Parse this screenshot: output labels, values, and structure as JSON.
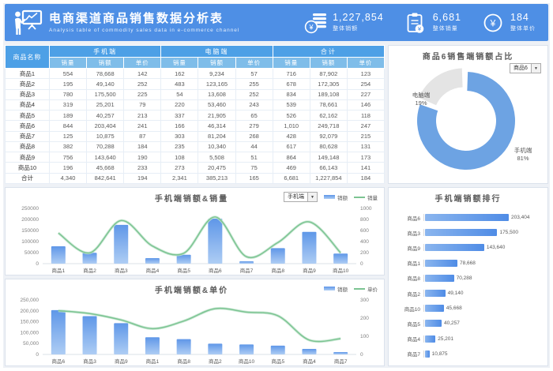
{
  "banner": {
    "title": "电商渠道商品销售数据分析表",
    "subtitle": "Analysis table of commodity sales data in e-commerce channel",
    "kpis": [
      {
        "value": "1,227,854",
        "label": "整体销额",
        "icon": "coin-stack-icon"
      },
      {
        "value": "6,681",
        "label": "整体销量",
        "icon": "clipboard-yen-icon"
      },
      {
        "value": "184",
        "label": "整体单价",
        "icon": "yen-circle-icon"
      }
    ]
  },
  "table": {
    "name_header": "商品名称",
    "group_headers": [
      "手机端",
      "电脑端",
      "合计"
    ],
    "sub_headers": [
      "销量",
      "销额",
      "单价"
    ],
    "rows": [
      {
        "name": "商品1",
        "values": [
          "554",
          "78,668",
          "142",
          "162",
          "9,234",
          "57",
          "716",
          "87,902",
          "123"
        ]
      },
      {
        "name": "商品2",
        "values": [
          "195",
          "49,140",
          "252",
          "483",
          "123,165",
          "255",
          "678",
          "172,305",
          "254"
        ]
      },
      {
        "name": "商品3",
        "values": [
          "780",
          "175,500",
          "225",
          "54",
          "13,608",
          "252",
          "834",
          "189,108",
          "227"
        ]
      },
      {
        "name": "商品4",
        "values": [
          "319",
          "25,201",
          "79",
          "220",
          "53,460",
          "243",
          "539",
          "78,661",
          "146"
        ]
      },
      {
        "name": "商品5",
        "values": [
          "189",
          "40,257",
          "213",
          "337",
          "21,905",
          "65",
          "526",
          "62,162",
          "118"
        ]
      },
      {
        "name": "商品6",
        "values": [
          "844",
          "203,404",
          "241",
          "166",
          "46,314",
          "279",
          "1,010",
          "249,718",
          "247"
        ]
      },
      {
        "name": "商品7",
        "values": [
          "125",
          "10,875",
          "87",
          "303",
          "81,204",
          "268",
          "428",
          "92,079",
          "215"
        ]
      },
      {
        "name": "商品8",
        "values": [
          "382",
          "70,288",
          "184",
          "235",
          "10,340",
          "44",
          "617",
          "80,628",
          "131"
        ]
      },
      {
        "name": "商品9",
        "values": [
          "756",
          "143,640",
          "190",
          "108",
          "5,508",
          "51",
          "864",
          "149,148",
          "173"
        ]
      },
      {
        "name": "商品10",
        "values": [
          "196",
          "45,668",
          "233",
          "273",
          "20,475",
          "75",
          "469",
          "66,143",
          "141"
        ]
      },
      {
        "name": "合计",
        "values": [
          "4,340",
          "842,641",
          "194",
          "2,341",
          "385,213",
          "165",
          "6,681",
          "1,227,854",
          "184"
        ]
      }
    ]
  },
  "colors": {
    "banner_blue": "#4e8fe5",
    "bar_top": "#5f97e8",
    "bar_bottom": "#aecdf4",
    "line_green": "#7cc492",
    "donut_blue": "#6da3e3",
    "donut_gray": "#e4e4e4"
  },
  "chart_data": [
    {
      "type": "pie",
      "donut": true,
      "title": "商品6销售端销额占比",
      "dropdown_value": "商品6",
      "slices": [
        {
          "label": "手机端",
          "value": 81,
          "pct_label": "81%",
          "color": "#6da3e3"
        },
        {
          "label": "电脑端",
          "value": 19,
          "pct_label": "19%",
          "color": "#e4e4e4"
        }
      ]
    },
    {
      "type": "combo_bar_line",
      "title": "手机端销额&销量",
      "dropdown_value": "手机端",
      "categories": [
        "商品1",
        "商品2",
        "商品3",
        "商品4",
        "商品5",
        "商品6",
        "商品7",
        "商品8",
        "商品9",
        "商品10"
      ],
      "series": [
        {
          "name": "销额",
          "kind": "bar",
          "axis": "left",
          "values": [
            78668,
            49140,
            175500,
            25201,
            40257,
            203404,
            10875,
            70288,
            143640,
            45668
          ]
        },
        {
          "name": "销量",
          "kind": "line",
          "axis": "right",
          "values": [
            554,
            195,
            780,
            319,
            189,
            844,
            125,
            382,
            756,
            196
          ]
        }
      ],
      "left_axis": {
        "max": 250000,
        "ticks": [
          "0",
          "50000",
          "100000",
          "150000",
          "200000",
          "250000"
        ]
      },
      "right_axis": {
        "max": 1000,
        "ticks": [
          "0",
          "200",
          "400",
          "600",
          "800",
          "1000"
        ]
      },
      "legend_position": "top-right",
      "grid": false
    },
    {
      "type": "combo_bar_line",
      "title": "手机端销额&单价",
      "categories": [
        "商品6",
        "商品3",
        "商品9",
        "商品1",
        "商品8",
        "商品2",
        "商品10",
        "商品5",
        "商品4",
        "商品7"
      ],
      "series": [
        {
          "name": "销额",
          "kind": "bar",
          "axis": "left",
          "values": [
            203404,
            175500,
            143640,
            78668,
            70288,
            49140,
            45668,
            40257,
            25201,
            10875
          ]
        },
        {
          "name": "单价",
          "kind": "line",
          "axis": "right",
          "values": [
            241,
            225,
            190,
            142,
            184,
            252,
            233,
            213,
            79,
            87
          ]
        }
      ],
      "left_axis": {
        "max": 250000,
        "ticks": [
          "0",
          "50,000",
          "100,000",
          "150,000",
          "200,000",
          "250,000"
        ]
      },
      "right_axis": {
        "max": 300,
        "ticks": [
          "0",
          "100",
          "200",
          "300"
        ]
      },
      "legend_position": "top-right",
      "grid": false
    },
    {
      "type": "hbar",
      "title": "手机端销额排行",
      "categories": [
        "商品6",
        "商品3",
        "商品9",
        "商品1",
        "商品8",
        "商品2",
        "商品10",
        "商品5",
        "商品4",
        "商品7"
      ],
      "values": [
        203404,
        175500,
        143640,
        78668,
        70288,
        49140,
        45668,
        40257,
        25201,
        10875
      ],
      "value_labels": [
        "203,404",
        "175,500",
        "143,640",
        "78,668",
        "70,288",
        "49,140",
        "45,668",
        "40,257",
        "25,201",
        "10,875"
      ]
    }
  ]
}
